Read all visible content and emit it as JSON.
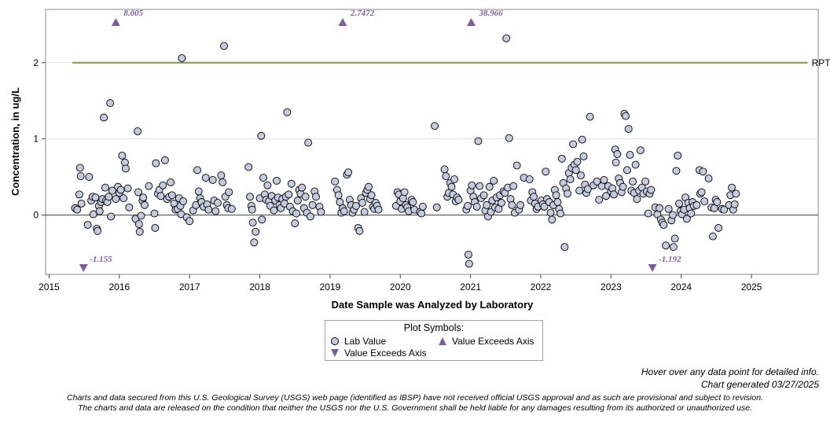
{
  "chart_data": {
    "type": "scatter",
    "title": "",
    "xlabel": "Date Sample was Analyzed by Laboratory",
    "ylabel": "Concentration, in ug/L",
    "xlim": [
      2014.95,
      2025.95
    ],
    "ylim": [
      -0.78,
      2.7
    ],
    "x_ticks": [
      "2015",
      "2016",
      "2017",
      "2018",
      "2019",
      "2020",
      "2021",
      "2022",
      "2023",
      "2024",
      "2025"
    ],
    "y_ticks": [
      "0",
      "1",
      "2"
    ],
    "y_tick_values": [
      0,
      1,
      2
    ],
    "grid": "horizontal",
    "zero_line": 0,
    "reference_line": {
      "label": "RPT Level",
      "value": 2,
      "x_start": 2015.33,
      "x_end": 2025.9,
      "color": "#7f9f3f"
    },
    "points": [
      [
        2015.37,
        0.09
      ],
      [
        2015.4,
        0.07
      ],
      [
        2015.43,
        0.27
      ],
      [
        2015.44,
        0.62
      ],
      [
        2015.45,
        0.51
      ],
      [
        2015.46,
        0.15
      ],
      [
        2015.55,
        -0.13
      ],
      [
        2015.57,
        0.5
      ],
      [
        2015.6,
        0.19
      ],
      [
        2015.62,
        0.24
      ],
      [
        2015.63,
        0.01
      ],
      [
        2015.66,
        0.23
      ],
      [
        2015.68,
        -0.18
      ],
      [
        2015.69,
        -0.21
      ],
      [
        2015.71,
        0.12
      ],
      [
        2015.72,
        0.05
      ],
      [
        2015.74,
        0.17
      ],
      [
        2015.76,
        0.21
      ],
      [
        2015.78,
        1.28
      ],
      [
        2015.8,
        0.36
      ],
      [
        2015.81,
        0.19
      ],
      [
        2015.83,
        0.17
      ],
      [
        2015.85,
        0.24
      ],
      [
        2015.87,
        1.47
      ],
      [
        2015.88,
        -0.02
      ],
      [
        2015.9,
        0.32
      ],
      [
        2015.95,
        0.21
      ],
      [
        2015.98,
        0.37
      ],
      [
        2016.0,
        0.29
      ],
      [
        2016.02,
        0.33
      ],
      [
        2016.04,
        0.78
      ],
      [
        2016.06,
        0.22
      ],
      [
        2016.08,
        0.69
      ],
      [
        2016.09,
        0.61
      ],
      [
        2016.12,
        0.35
      ],
      [
        2016.14,
        0.1
      ],
      [
        2016.23,
        -0.05
      ],
      [
        2016.26,
        1.1
      ],
      [
        2016.27,
        0.3
      ],
      [
        2016.28,
        -0.12
      ],
      [
        2016.29,
        -0.22
      ],
      [
        2016.31,
        -0.01
      ],
      [
        2016.33,
        0.19
      ],
      [
        2016.34,
        0.23
      ],
      [
        2016.36,
        0.13
      ],
      [
        2016.42,
        0.38
      ],
      [
        2016.5,
        0.02
      ],
      [
        2016.51,
        -0.17
      ],
      [
        2016.52,
        0.68
      ],
      [
        2016.55,
        0.28
      ],
      [
        2016.57,
        0.33
      ],
      [
        2016.59,
        0.25
      ],
      [
        2016.62,
        0.39
      ],
      [
        2016.65,
        0.72
      ],
      [
        2016.68,
        0.21
      ],
      [
        2016.71,
        0.24
      ],
      [
        2016.73,
        0.43
      ],
      [
        2016.75,
        0.26
      ],
      [
        2016.78,
        0.15
      ],
      [
        2016.8,
        0.07
      ],
      [
        2016.83,
        0.08
      ],
      [
        2016.85,
        0.22
      ],
      [
        2016.87,
        0.12
      ],
      [
        2016.88,
        0.01
      ],
      [
        2016.89,
        2.06
      ],
      [
        2016.91,
        0.18
      ],
      [
        2016.96,
        -0.03
      ],
      [
        2017.0,
        -0.08
      ],
      [
        2017.05,
        0.06
      ],
      [
        2017.09,
        0.13
      ],
      [
        2017.11,
        0.59
      ],
      [
        2017.13,
        0.31
      ],
      [
        2017.15,
        0.22
      ],
      [
        2017.17,
        0.17
      ],
      [
        2017.2,
        0.11
      ],
      [
        2017.23,
        0.49
      ],
      [
        2017.25,
        0.14
      ],
      [
        2017.27,
        0.07
      ],
      [
        2017.33,
        0.46
      ],
      [
        2017.35,
        0.19
      ],
      [
        2017.37,
        0.05
      ],
      [
        2017.4,
        0.16
      ],
      [
        2017.45,
        0.52
      ],
      [
        2017.47,
        0.43
      ],
      [
        2017.49,
        2.22
      ],
      [
        2017.51,
        0.24
      ],
      [
        2017.53,
        0.13
      ],
      [
        2017.55,
        0.09
      ],
      [
        2017.56,
        0.3
      ],
      [
        2017.6,
        0.08
      ],
      [
        2017.84,
        0.63
      ],
      [
        2017.86,
        0.24
      ],
      [
        2017.88,
        0.12
      ],
      [
        2017.89,
        0.07
      ],
      [
        2017.9,
        -0.1
      ],
      [
        2017.92,
        -0.36
      ],
      [
        2017.94,
        -0.22
      ],
      [
        2018.0,
        0.22
      ],
      [
        2018.02,
        1.04
      ],
      [
        2018.03,
        -0.06
      ],
      [
        2018.05,
        0.49
      ],
      [
        2018.07,
        0.27
      ],
      [
        2018.09,
        0.2
      ],
      [
        2018.11,
        0.39
      ],
      [
        2018.13,
        0.18
      ],
      [
        2018.15,
        0.12
      ],
      [
        2018.17,
        0.25
      ],
      [
        2018.2,
        0.06
      ],
      [
        2018.22,
        0.19
      ],
      [
        2018.24,
        0.45
      ],
      [
        2018.26,
        0.23
      ],
      [
        2018.28,
        0.13
      ],
      [
        2018.3,
        0.09
      ],
      [
        2018.32,
        0.21
      ],
      [
        2018.35,
        0.15
      ],
      [
        2018.37,
        0.24
      ],
      [
        2018.39,
        1.35
      ],
      [
        2018.41,
        0.27
      ],
      [
        2018.43,
        0.11
      ],
      [
        2018.45,
        0.41
      ],
      [
        2018.47,
        0.05
      ],
      [
        2018.5,
        -0.11
      ],
      [
        2018.52,
        0.02
      ],
      [
        2018.54,
        0.19
      ],
      [
        2018.56,
        0.33
      ],
      [
        2018.58,
        0.28
      ],
      [
        2018.6,
        0.36
      ],
      [
        2018.63,
        0.09
      ],
      [
        2018.65,
        0.24
      ],
      [
        2018.67,
        0.03
      ],
      [
        2018.69,
        0.95
      ],
      [
        2018.72,
        -0.02
      ],
      [
        2018.75,
        0.13
      ],
      [
        2018.78,
        0.31
      ],
      [
        2018.8,
        0.24
      ],
      [
        2018.85,
        0.11
      ],
      [
        2018.87,
        0.04
      ],
      [
        2019.07,
        0.44
      ],
      [
        2019.1,
        0.33
      ],
      [
        2019.12,
        0.26
      ],
      [
        2019.14,
        0.17
      ],
      [
        2019.16,
        0.03
      ],
      [
        2019.18,
        0.09
      ],
      [
        2019.2,
        0.05
      ],
      [
        2019.24,
        0.53
      ],
      [
        2019.26,
        0.56
      ],
      [
        2019.28,
        0.2
      ],
      [
        2019.3,
        0.13
      ],
      [
        2019.32,
        0.03
      ],
      [
        2019.34,
        0.07
      ],
      [
        2019.37,
        0.12
      ],
      [
        2019.4,
        -0.17
      ],
      [
        2019.42,
        -0.21
      ],
      [
        2019.44,
        0.22
      ],
      [
        2019.46,
        0.16
      ],
      [
        2019.49,
        0.04
      ],
      [
        2019.51,
        0.29
      ],
      [
        2019.53,
        0.33
      ],
      [
        2019.55,
        0.37
      ],
      [
        2019.57,
        0.21
      ],
      [
        2019.59,
        0.26
      ],
      [
        2019.61,
        0.11
      ],
      [
        2019.63,
        0.08
      ],
      [
        2019.65,
        0.16
      ],
      [
        2019.67,
        0.12
      ],
      [
        2019.69,
        0.07
      ],
      [
        2019.94,
        0.12
      ],
      [
        2019.96,
        0.3
      ],
      [
        2019.98,
        0.27
      ],
      [
        2020.0,
        0.18
      ],
      [
        2020.02,
        0.08
      ],
      [
        2020.04,
        0.22
      ],
      [
        2020.06,
        0.3
      ],
      [
        2020.08,
        0.13
      ],
      [
        2020.1,
        0.1
      ],
      [
        2020.12,
        0.05
      ],
      [
        2020.16,
        0.2
      ],
      [
        2020.18,
        0.17
      ],
      [
        2020.2,
        0.07
      ],
      [
        2020.28,
        0.04
      ],
      [
        2020.3,
        0.02
      ],
      [
        2020.32,
        0.11
      ],
      [
        2020.49,
        1.17
      ],
      [
        2020.52,
        0.1
      ],
      [
        2020.63,
        0.6
      ],
      [
        2020.65,
        0.51
      ],
      [
        2020.67,
        0.24
      ],
      [
        2020.69,
        0.29
      ],
      [
        2020.71,
        0.42
      ],
      [
        2020.73,
        0.37
      ],
      [
        2020.75,
        0.27
      ],
      [
        2020.77,
        0.47
      ],
      [
        2020.79,
        0.18
      ],
      [
        2020.81,
        0.23
      ],
      [
        2020.83,
        0.2
      ],
      [
        2020.94,
        0.07
      ],
      [
        2020.96,
        0.12
      ],
      [
        2020.97,
        -0.52
      ],
      [
        2020.98,
        -0.64
      ],
      [
        2021.0,
        0.32
      ],
      [
        2021.02,
        0.39
      ],
      [
        2021.04,
        0.24
      ],
      [
        2021.06,
        0.17
      ],
      [
        2021.09,
        0.11
      ],
      [
        2021.11,
        0.97
      ],
      [
        2021.13,
        0.38
      ],
      [
        2021.15,
        0.22
      ],
      [
        2021.19,
        0.26
      ],
      [
        2021.21,
        0.06
      ],
      [
        2021.23,
        0.13
      ],
      [
        2021.25,
        -0.02
      ],
      [
        2021.27,
        0.37
      ],
      [
        2021.29,
        0.04
      ],
      [
        2021.31,
        0.19
      ],
      [
        2021.33,
        0.45
      ],
      [
        2021.35,
        0.1
      ],
      [
        2021.37,
        0.23
      ],
      [
        2021.4,
        0.08
      ],
      [
        2021.42,
        0.26
      ],
      [
        2021.44,
        0.16
      ],
      [
        2021.47,
        0.31
      ],
      [
        2021.49,
        0.29
      ],
      [
        2021.51,
        2.32
      ],
      [
        2021.53,
        0.36
      ],
      [
        2021.55,
        1.01
      ],
      [
        2021.57,
        0.21
      ],
      [
        2021.59,
        0.13
      ],
      [
        2021.61,
        0.38
      ],
      [
        2021.63,
        0.03
      ],
      [
        2021.66,
        0.65
      ],
      [
        2021.69,
        0.07
      ],
      [
        2021.71,
        0.13
      ],
      [
        2021.76,
        0.49
      ],
      [
        2021.84,
        0.47
      ],
      [
        2021.86,
        0.19
      ],
      [
        2021.88,
        0.3
      ],
      [
        2021.9,
        0.24
      ],
      [
        2021.92,
        0.15
      ],
      [
        2021.94,
        0.08
      ],
      [
        2021.96,
        0.11
      ],
      [
        2022.01,
        0.19
      ],
      [
        2022.03,
        0.14
      ],
      [
        2022.05,
        0.11
      ],
      [
        2022.07,
        0.57
      ],
      [
        2022.09,
        0.21
      ],
      [
        2022.12,
        0.17
      ],
      [
        2022.14,
        0.03
      ],
      [
        2022.16,
        -0.06
      ],
      [
        2022.18,
        0.13
      ],
      [
        2022.2,
        0.33
      ],
      [
        2022.22,
        0.26
      ],
      [
        2022.24,
        0.17
      ],
      [
        2022.26,
        0.08
      ],
      [
        2022.28,
        0.02
      ],
      [
        2022.3,
        0.74
      ],
      [
        2022.32,
        0.42
      ],
      [
        2022.34,
        -0.42
      ],
      [
        2022.36,
        0.35
      ],
      [
        2022.38,
        0.28
      ],
      [
        2022.4,
        0.55
      ],
      [
        2022.42,
        0.47
      ],
      [
        2022.44,
        0.62
      ],
      [
        2022.46,
        0.93
      ],
      [
        2022.48,
        0.66
      ],
      [
        2022.5,
        0.59
      ],
      [
        2022.52,
        0.7
      ],
      [
        2022.55,
        0.32
      ],
      [
        2022.57,
        0.52
      ],
      [
        2022.59,
        0.99
      ],
      [
        2022.61,
        0.77
      ],
      [
        2022.63,
        0.4
      ],
      [
        2022.65,
        0.29
      ],
      [
        2022.67,
        0.34
      ],
      [
        2022.7,
        1.29
      ],
      [
        2022.75,
        0.39
      ],
      [
        2022.8,
        0.44
      ],
      [
        2022.83,
        0.2
      ],
      [
        2022.87,
        0.38
      ],
      [
        2022.9,
        0.46
      ],
      [
        2022.93,
        0.25
      ],
      [
        2022.96,
        0.38
      ],
      [
        2023.0,
        0.31
      ],
      [
        2023.02,
        0.35
      ],
      [
        2023.04,
        0.27
      ],
      [
        2023.06,
        0.86
      ],
      [
        2023.07,
        0.69
      ],
      [
        2023.09,
        0.8
      ],
      [
        2023.11,
        0.48
      ],
      [
        2023.13,
        0.42
      ],
      [
        2023.15,
        0.3
      ],
      [
        2023.17,
        0.37
      ],
      [
        2023.19,
        1.33
      ],
      [
        2023.21,
        1.3
      ],
      [
        2023.23,
        0.59
      ],
      [
        2023.25,
        1.13
      ],
      [
        2023.27,
        0.79
      ],
      [
        2023.29,
        0.32
      ],
      [
        2023.31,
        0.44
      ],
      [
        2023.33,
        0.29
      ],
      [
        2023.35,
        0.66
      ],
      [
        2023.37,
        0.21
      ],
      [
        2023.4,
        0.32
      ],
      [
        2023.42,
        0.85
      ],
      [
        2023.44,
        0.36
      ],
      [
        2023.46,
        0.28
      ],
      [
        2023.49,
        0.44
      ],
      [
        2023.51,
        0.31
      ],
      [
        2023.53,
        0.02
      ],
      [
        2023.55,
        0.28
      ],
      [
        2023.57,
        0.33
      ],
      [
        2023.63,
        0.1
      ],
      [
        2023.66,
        0.01
      ],
      [
        2023.69,
        0.09
      ],
      [
        2023.71,
        -0.06
      ],
      [
        2023.73,
        -0.1
      ],
      [
        2023.75,
        -0.13
      ],
      [
        2023.78,
        -0.4
      ],
      [
        2023.82,
        0.08
      ],
      [
        2023.86,
        -0.07
      ],
      [
        2023.88,
        0.0
      ],
      [
        2023.89,
        -0.42
      ],
      [
        2023.91,
        -0.31
      ],
      [
        2023.93,
        0.58
      ],
      [
        2023.95,
        0.78
      ],
      [
        2023.97,
        0.15
      ],
      [
        2023.99,
        0.05
      ],
      [
        2024.01,
        0.01
      ],
      [
        2024.04,
        0.07
      ],
      [
        2024.06,
        0.23
      ],
      [
        2024.08,
        -0.05
      ],
      [
        2024.1,
        0.16
      ],
      [
        2024.12,
        0.09
      ],
      [
        2024.14,
        0.02
      ],
      [
        2024.16,
        0.17
      ],
      [
        2024.18,
        0.12
      ],
      [
        2024.22,
        0.13
      ],
      [
        2024.26,
        0.59
      ],
      [
        2024.27,
        0.28
      ],
      [
        2024.29,
        0.3
      ],
      [
        2024.31,
        0.57
      ],
      [
        2024.33,
        0.18
      ],
      [
        2024.39,
        0.48
      ],
      [
        2024.43,
        0.1
      ],
      [
        2024.45,
        -0.28
      ],
      [
        2024.47,
        0.09
      ],
      [
        2024.49,
        0.2
      ],
      [
        2024.51,
        0.17
      ],
      [
        2024.53,
        -0.17
      ],
      [
        2024.58,
        0.08
      ],
      [
        2024.61,
        0.07
      ],
      [
        2024.68,
        0.13
      ],
      [
        2024.7,
        0.26
      ],
      [
        2024.72,
        0.36
      ],
      [
        2024.74,
        0.07
      ],
      [
        2024.76,
        0.14
      ],
      [
        2024.78,
        0.28
      ]
    ],
    "exceeds_axis_high": [
      {
        "x": 2015.95,
        "label": "8.005"
      },
      {
        "x": 2019.18,
        "label": "2.7472"
      },
      {
        "x": 2021.01,
        "label": "38.966"
      }
    ],
    "exceeds_axis_low": [
      {
        "x": 2015.49,
        "label": "-1.155"
      },
      {
        "x": 2023.59,
        "label": "-1.192"
      }
    ],
    "colors": {
      "point_fill": "#c4cbdf",
      "point_stroke": "#000000",
      "triangle": "#7a5f9b",
      "reference": "#7f9f3f",
      "zero_line": "#606060",
      "grid": "#e3e3e3"
    }
  },
  "legend": {
    "title": "Plot Symbols:",
    "items": [
      {
        "label": "Lab Value"
      },
      {
        "label": "Value Exceeds Axis"
      },
      {
        "label": "Value Exceeds Axis"
      }
    ]
  },
  "notes": {
    "hover": "Hover over any data point for detailed info.",
    "generated": "Chart generated 03/27/2025",
    "disclaimer_line1": "Charts and data secured from this U.S. Geological Survey (USGS) web page (identified as IBSP) have not received official USGS approval and as such are provisional and subject to revision.",
    "disclaimer_line2": "The charts and data are released on the condition that neither the USGS nor the U.S. Government shall be held liable for any damages resulting from its authorized or unauthorized use."
  }
}
